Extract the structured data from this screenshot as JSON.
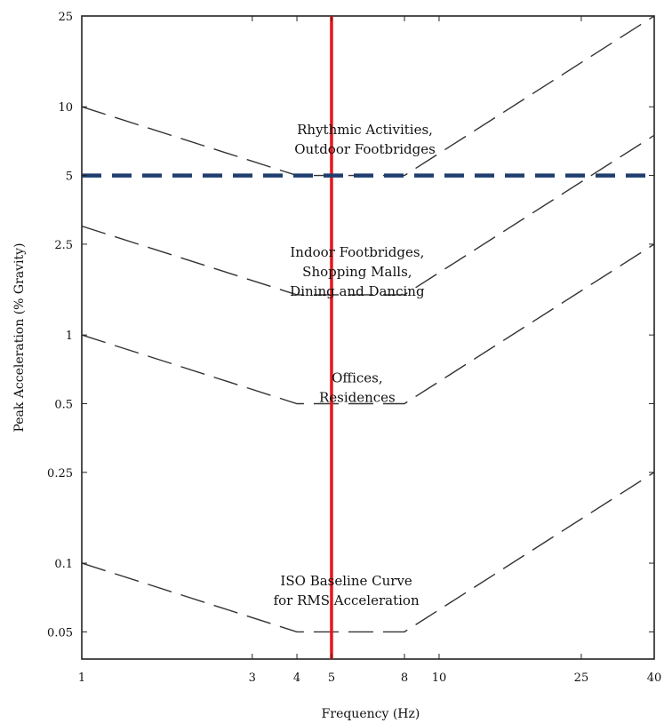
{
  "chart_data": {
    "type": "line",
    "xlabel": "Frequency (Hz)",
    "ylabel": "Peak Acceleration (% Gravity)",
    "x_scale": "log",
    "y_scale": "log",
    "xlim": [
      1,
      40
    ],
    "ylim": [
      0.038,
      25
    ],
    "x_ticks": [
      {
        "value": 1,
        "label": "1"
      },
      {
        "value": 3,
        "label": "3"
      },
      {
        "value": 4,
        "label": "4"
      },
      {
        "value": 5,
        "label": "5"
      },
      {
        "value": 8,
        "label": "8"
      },
      {
        "value": 10,
        "label": "10"
      },
      {
        "value": 25,
        "label": "25"
      },
      {
        "value": 40,
        "label": "40"
      }
    ],
    "y_ticks": [
      {
        "value": 0.05,
        "label": "0.05"
      },
      {
        "value": 0.1,
        "label": "0.1"
      },
      {
        "value": 0.25,
        "label": "0.25"
      },
      {
        "value": 0.5,
        "label": "0.5"
      },
      {
        "value": 1,
        "label": "1"
      },
      {
        "value": 2.5,
        "label": "2.5"
      },
      {
        "value": 5,
        "label": "5"
      },
      {
        "value": 10,
        "label": "10"
      },
      {
        "value": 25,
        "label": "25"
      }
    ],
    "series": [
      {
        "x": [
          1,
          4,
          8,
          40
        ],
        "y": [
          0.1,
          0.05,
          0.05,
          0.25
        ]
      },
      {
        "x": [
          1,
          4,
          8,
          40
        ],
        "y": [
          1,
          0.5,
          0.5,
          2.5
        ]
      },
      {
        "x": [
          1,
          4,
          8,
          40
        ],
        "y": [
          3,
          1.5,
          1.5,
          7.5
        ]
      },
      {
        "x": [
          1,
          4,
          8,
          40
        ],
        "y": [
          10,
          5,
          5,
          25
        ]
      }
    ],
    "annotations": [
      {
        "lines": [
          "Rhythmic Activities,",
          "Outdoor Footbridges"
        ],
        "x": 6.2,
        "y": 7.6
      },
      {
        "lines": [
          "Indoor Footbridges,",
          "Shopping Malls,",
          "Dining and Dancing"
        ],
        "x": 5.9,
        "y": 2.2
      },
      {
        "lines": [
          "Offices,",
          "Residences"
        ],
        "x": 5.9,
        "y": 0.62
      },
      {
        "lines": [
          "ISO Baseline Curve",
          "for RMS Acceleration"
        ],
        "x": 5.5,
        "y": 0.08
      }
    ],
    "reference_lines": [
      {
        "orientation": "vertical",
        "value": 5,
        "color": "#e8151b"
      },
      {
        "orientation": "horizontal",
        "value": 5,
        "color": "#1f3e6e"
      }
    ],
    "grid": false
  }
}
